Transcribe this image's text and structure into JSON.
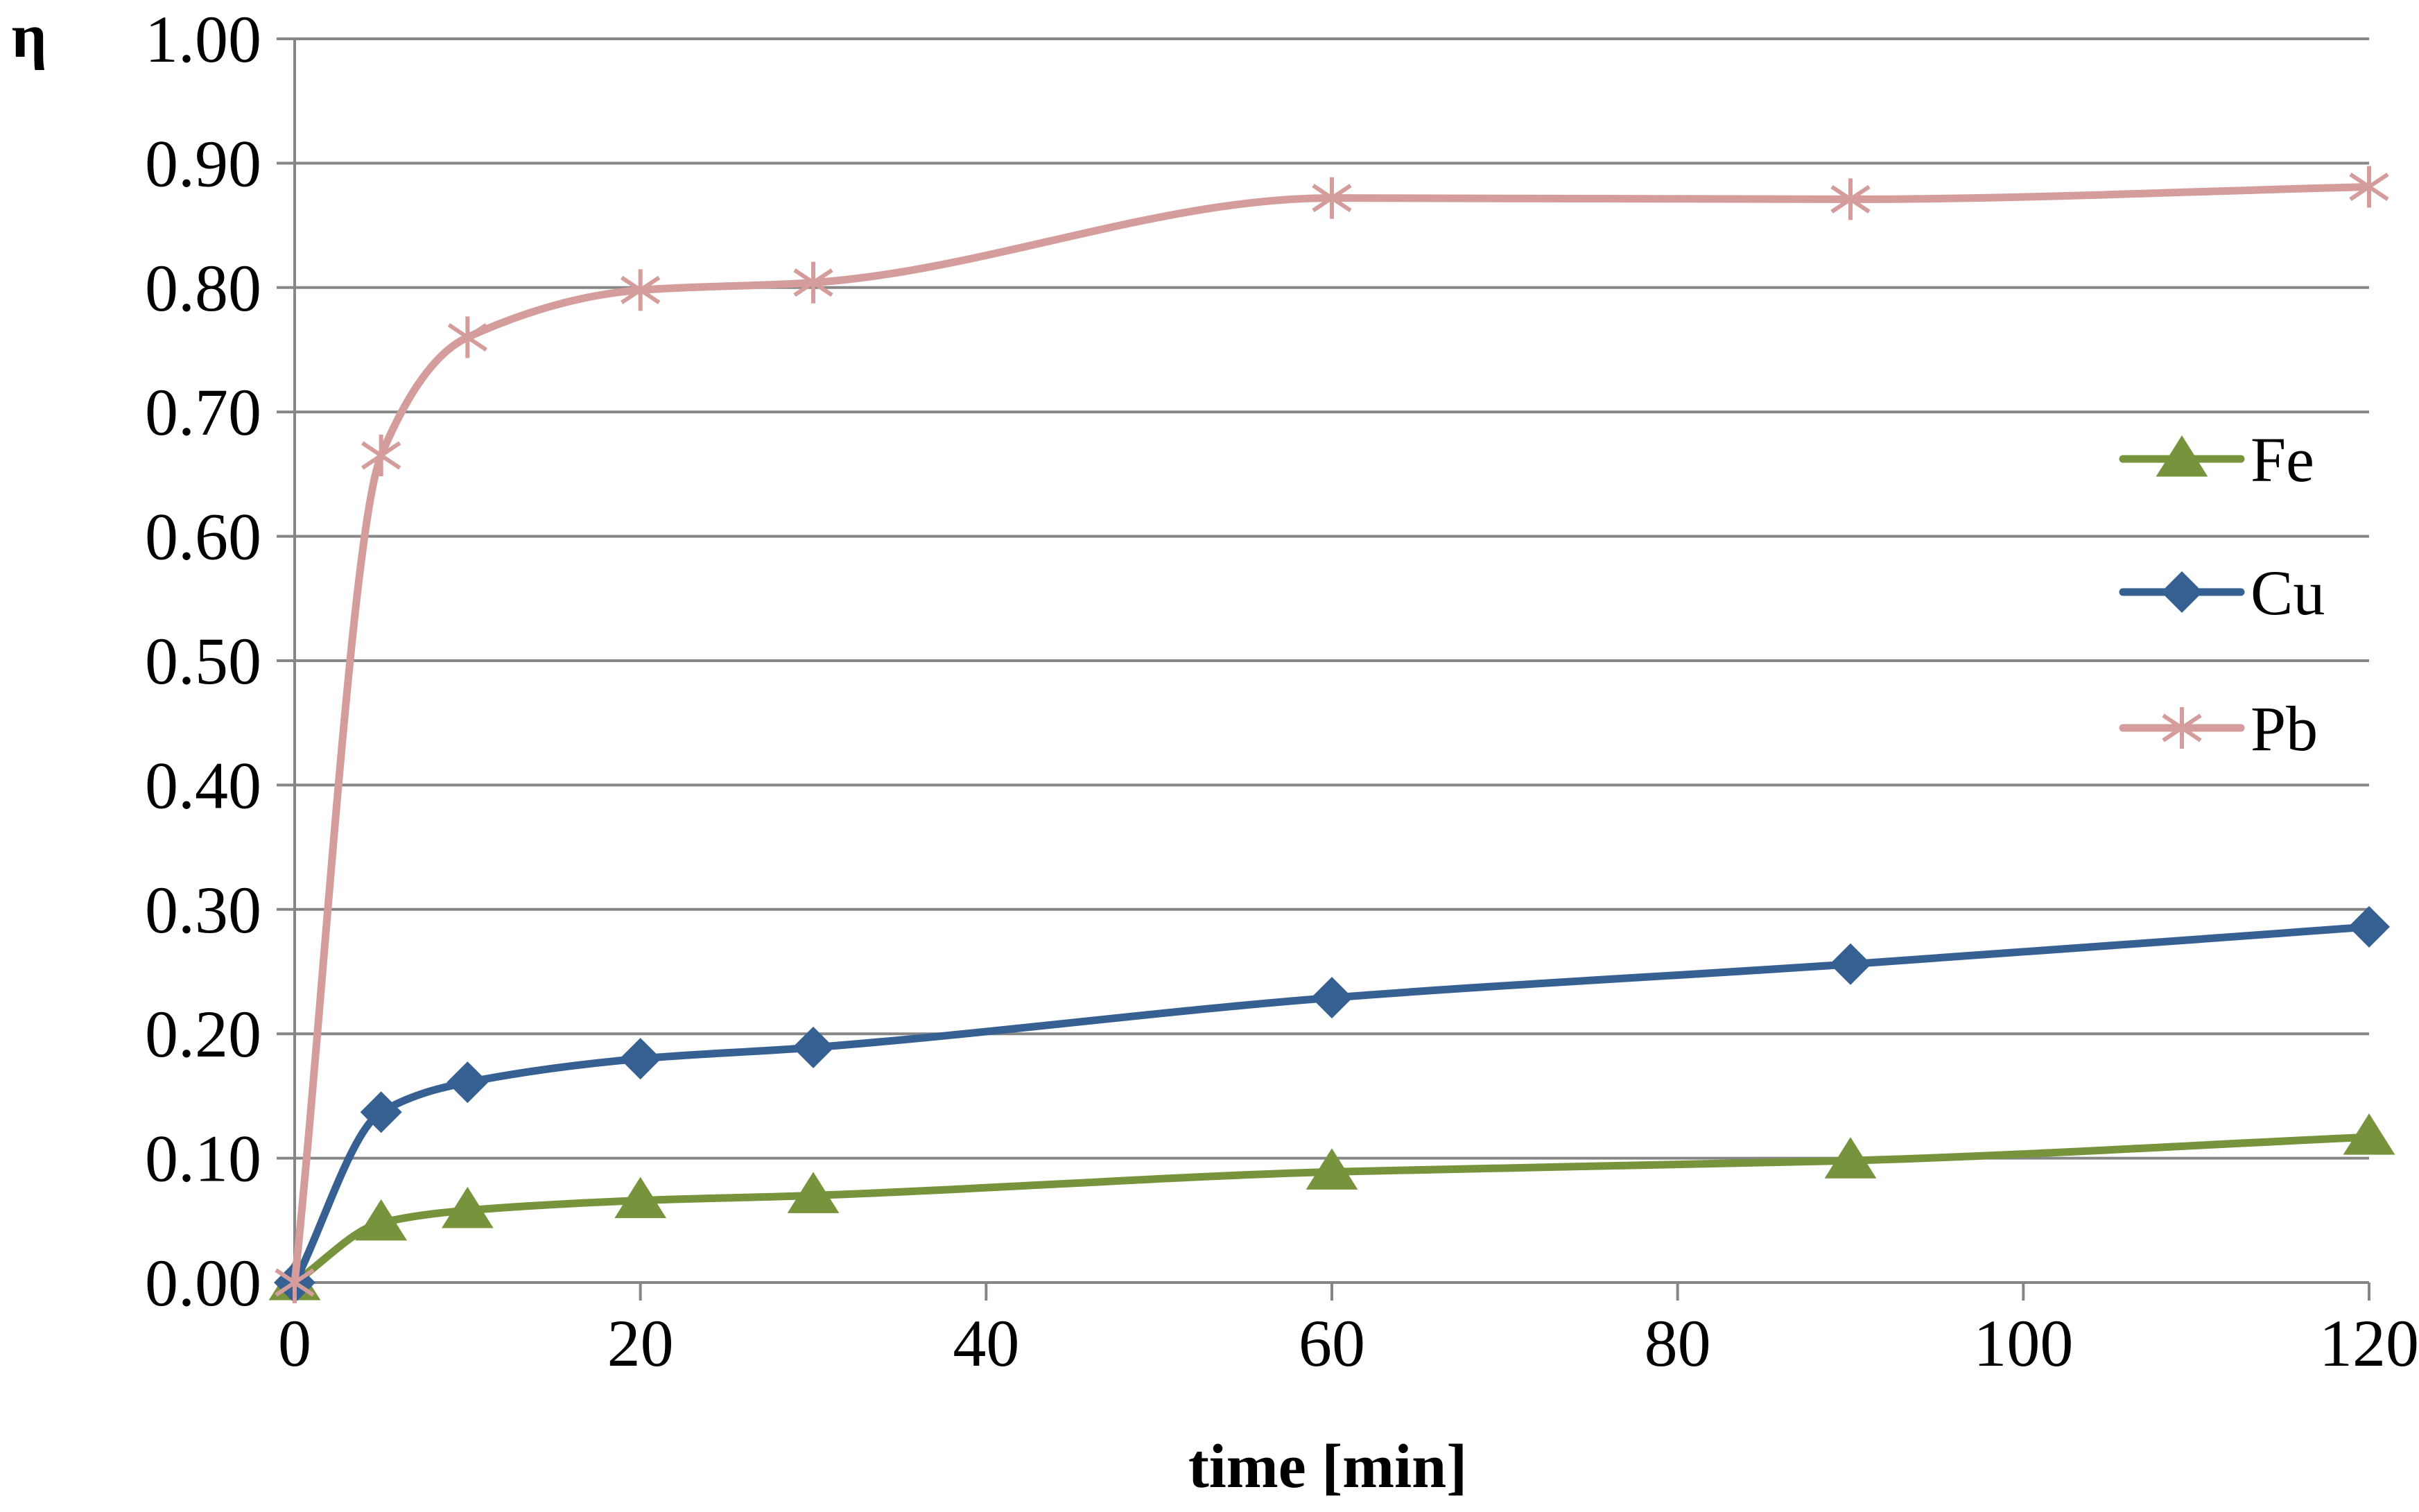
{
  "chart_data": {
    "type": "line",
    "title": "",
    "xlabel": "time [min]",
    "ylabel": "η",
    "xlim": [
      0,
      120
    ],
    "ylim": [
      0,
      1
    ],
    "x_ticks": [
      0,
      20,
      40,
      60,
      80,
      100,
      120
    ],
    "x_tick_labels": [
      "0",
      "20",
      "40",
      "60",
      "80",
      "100",
      "120"
    ],
    "y_ticks": [
      0,
      0.1,
      0.2,
      0.3,
      0.4,
      0.5,
      0.6,
      0.7,
      0.8,
      0.9,
      1.0
    ],
    "y_tick_labels": [
      "0.00",
      "0.10",
      "0.20",
      "0.30",
      "0.40",
      "0.50",
      "0.60",
      "0.70",
      "0.80",
      "0.90",
      "1.00"
    ],
    "grid": "horizontal",
    "legend_position": "right",
    "x": [
      0,
      5,
      10,
      20,
      30,
      60,
      90,
      120
    ],
    "series": [
      {
        "name": "Fe",
        "color": "#77933c",
        "marker": "triangle",
        "values": [
          0.0,
          0.048,
          0.058,
          0.066,
          0.07,
          0.089,
          0.098,
          0.117
        ]
      },
      {
        "name": "Cu",
        "color": "#376092",
        "marker": "diamond",
        "values": [
          0.0,
          0.137,
          0.161,
          0.18,
          0.189,
          0.229,
          0.256,
          0.286
        ]
      },
      {
        "name": "Pb",
        "color": "#d59c9c",
        "marker": "star",
        "values": [
          0.0,
          0.665,
          0.76,
          0.798,
          0.804,
          0.872,
          0.871,
          0.881
        ]
      }
    ]
  }
}
